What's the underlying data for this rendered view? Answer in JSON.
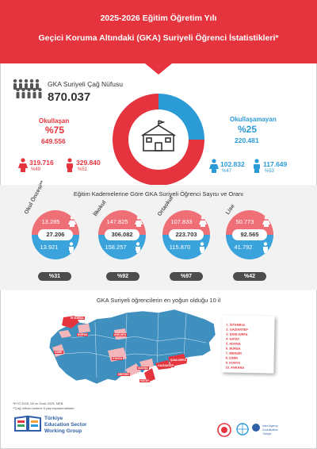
{
  "header": {
    "title_line1": "2025-2026 Eğitim Öğretim Yılı",
    "title_line2": "Geçici Koruma Altındaki (GKA) Suriyeli Öğrenci İstatistikleri*"
  },
  "population": {
    "label": "GKA Suriyeli Çağ Nüfusu",
    "value": "870.037"
  },
  "enrolled": {
    "label": "Okullaşan",
    "percent": "%75",
    "value": "649.556",
    "female_value": "319.716",
    "female_percent": "%49",
    "male_value": "329.840",
    "male_percent": "%51",
    "share": 0.75
  },
  "not_enrolled": {
    "label": "Okullaşamayan",
    "percent": "%25",
    "value": "220.481",
    "female_value": "102.832",
    "female_percent": "%47",
    "male_value": "117.649",
    "male_percent": "%53",
    "share": 0.25
  },
  "levels": {
    "title": "Eğitim Kademelerine Göre GKA Suriyeli Öğrenci Sayısı ve Oranı",
    "items": [
      {
        "name": "Okul Öncesi**",
        "female": "13.285",
        "total": "27.206",
        "male": "13.921",
        "rate": "%31"
      },
      {
        "name": "İlkokul",
        "female": "147.825",
        "total": "306.082",
        "male": "158.257",
        "rate": "%92"
      },
      {
        "name": "Ortaokul",
        "female": "107.833",
        "total": "223.703",
        "male": "115.870",
        "rate": "%97"
      },
      {
        "name": "Lise",
        "female": "50.773",
        "total": "92.565",
        "male": "41.792",
        "rate": "%42"
      }
    ]
  },
  "map": {
    "title": "GKA Suriyeli öğrencilerin en yoğun olduğu 10 il",
    "cities": [
      "İSTANBUL",
      "GAZİANTEP",
      "ŞANLIURFA",
      "HATAY",
      "ADANA",
      "BURSA",
      "MERSİN",
      "İZMİR",
      "KONYA",
      "ANKARA"
    ],
    "list": [
      "1. İSTANBUL",
      "2. GAZİANTEP",
      "3. ŞANLIURFA",
      "4. HATAY",
      "5. ADANA",
      "6. BURSA",
      "7. MERSİN",
      "8. İZMİR",
      "9. KONYA",
      "10. ANKARA"
    ]
  },
  "footer": {
    "note1": "*EYÖ 2025, 08 ve Ocak 2025, MEB",
    "note2": "**Çağ nüfusu sadece 5 yaş kapsanmaktadır.",
    "brand_line1": "Türkiye",
    "brand_line2": "Education Sector",
    "brand_line3": "Working Group",
    "iacc_line1": "Inter-Agency",
    "iacc_line2": "Coordination",
    "iacc_line3": "Türkiye"
  },
  "colors": {
    "red": "#e5343d",
    "blue": "#2b9bd6",
    "light_red": "#ef6f77",
    "light_blue": "#3aa3dc",
    "map_blue": "#3f8fbf",
    "map_pink": "#f2b6bb"
  },
  "icons": [
    "people-group-icon",
    "school-icon",
    "female-icon",
    "male-icon",
    "education-book-icon",
    "unicef-logo-icon",
    "un-logo-icon"
  ]
}
